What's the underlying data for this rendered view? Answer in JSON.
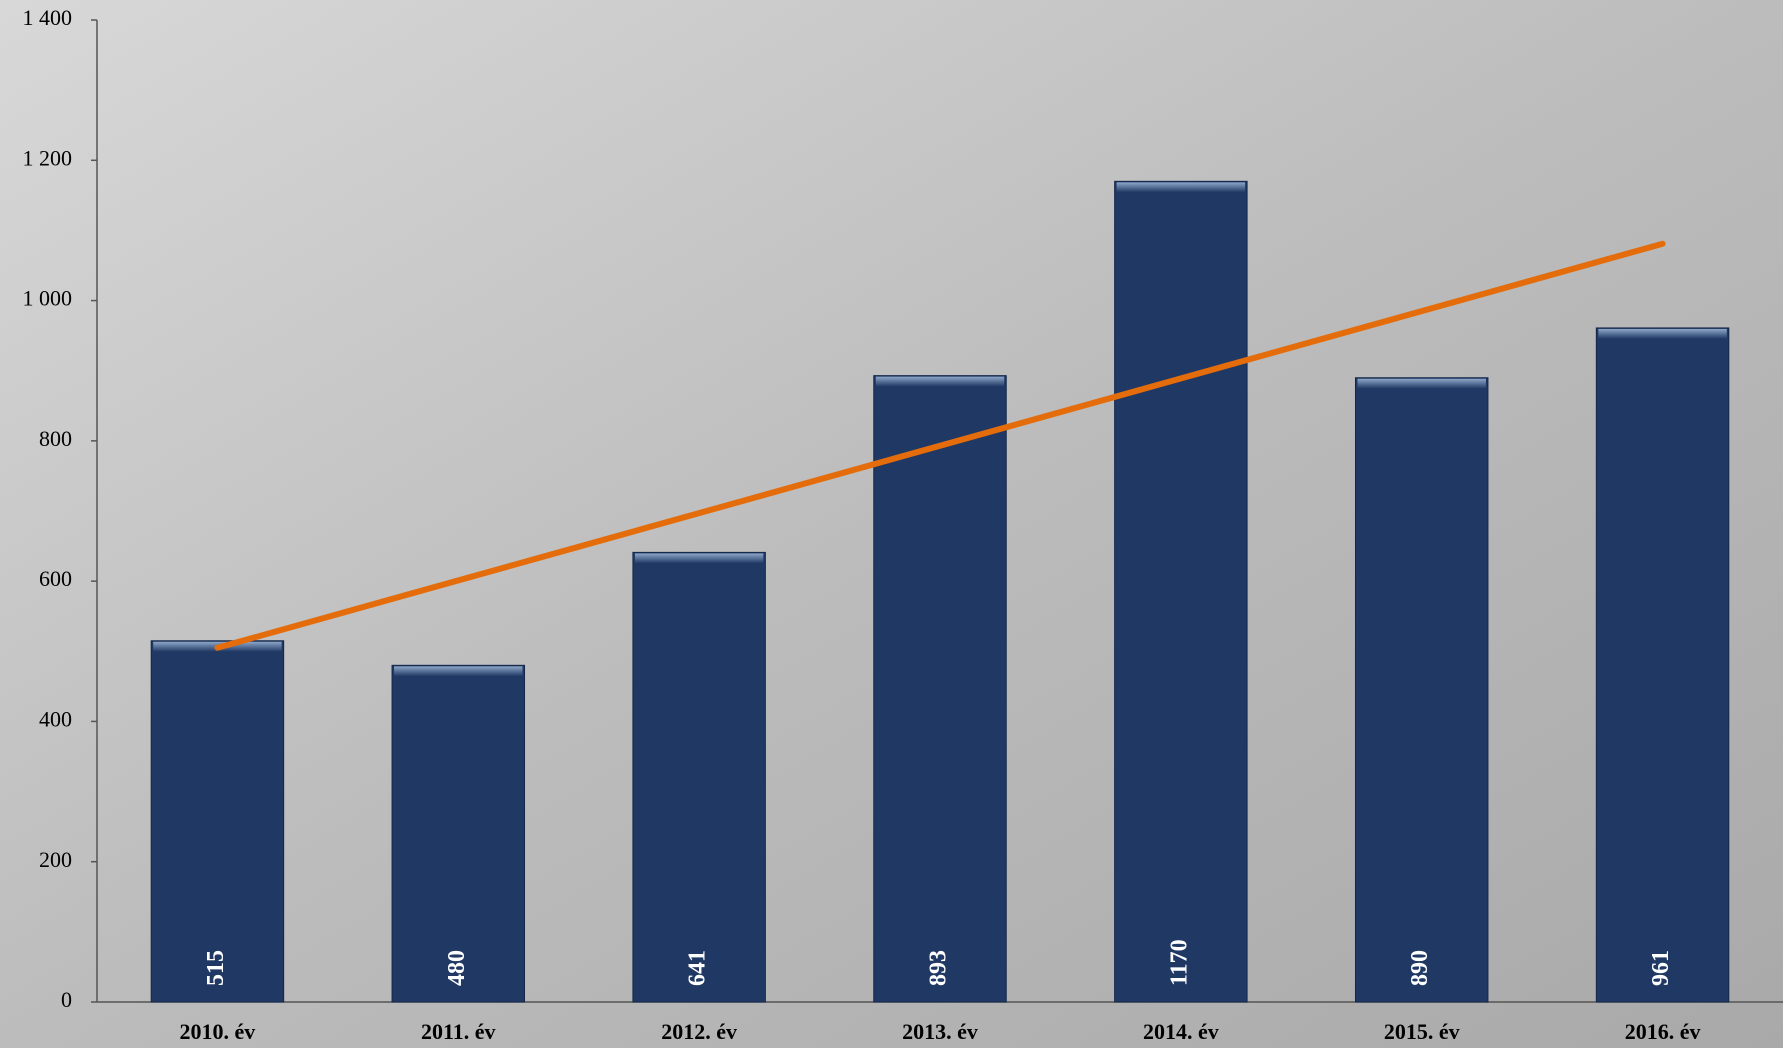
{
  "chart_data": {
    "type": "bar",
    "categories": [
      "2010. év",
      "2011. év",
      "2012. év",
      "2013. év",
      "2014. év",
      "2015. év",
      "2016. év"
    ],
    "values": [
      515,
      480,
      641,
      893,
      1170,
      890,
      961
    ],
    "color": "#1f3864",
    "ylim": [
      0,
      1400
    ],
    "yticks": [
      0,
      200,
      400,
      600,
      800,
      {
        "value": 1000,
        "label": "1 000"
      },
      {
        "value": 1200,
        "label": "1 200"
      },
      {
        "value": 1400,
        "label": "1 400"
      }
    ],
    "trendline": {
      "color": "#e46c0a",
      "values": [
        505,
        1081
      ]
    }
  }
}
